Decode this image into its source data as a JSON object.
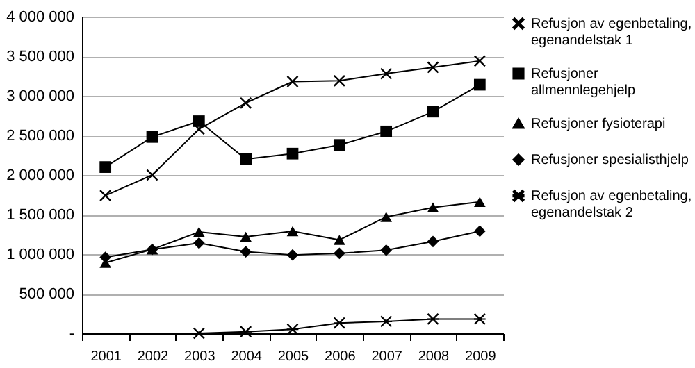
{
  "chart_data": {
    "type": "line",
    "categories": [
      "2001",
      "2002",
      "2003",
      "2004",
      "2005",
      "2006",
      "2007",
      "2008",
      "2009"
    ],
    "ylim": [
      0,
      4000000
    ],
    "yticks": [
      {
        "value": 0,
        "label": "-"
      },
      {
        "value": 500000,
        "label": "500 000"
      },
      {
        "value": 1000000,
        "label": "1 000 000"
      },
      {
        "value": 1500000,
        "label": "1 500 000"
      },
      {
        "value": 2000000,
        "label": "2 000 000"
      },
      {
        "value": 2500000,
        "label": "2 500 000"
      },
      {
        "value": 3000000,
        "label": "3 000 000"
      },
      {
        "value": 3500000,
        "label": "3 500 000"
      },
      {
        "value": 4000000,
        "label": "4 000 000"
      }
    ],
    "grid": "y",
    "legend": "right",
    "series": [
      {
        "name": "Refusjon av egenbetaling, egenandelstak 1",
        "color": "#000000",
        "marker": "cross",
        "values": [
          1740000,
          2000000,
          2580000,
          2910000,
          3180000,
          3190000,
          3280000,
          3360000,
          3440000
        ]
      },
      {
        "name": "Refusjoner allmennlegehjelp",
        "color": "#000000",
        "marker": "square",
        "values": [
          2100000,
          2480000,
          2680000,
          2200000,
          2270000,
          2380000,
          2550000,
          2800000,
          3140000
        ]
      },
      {
        "name": "Refusjoner fysioterapi",
        "color": "#000000",
        "marker": "triangle",
        "values": [
          890000,
          1060000,
          1280000,
          1220000,
          1290000,
          1180000,
          1470000,
          1590000,
          1660000
        ]
      },
      {
        "name": "Refusjoner spesialisthjelp",
        "color": "#000000",
        "marker": "diamond",
        "values": [
          960000,
          1060000,
          1140000,
          1030000,
          990000,
          1010000,
          1050000,
          1160000,
          1290000
        ]
      },
      {
        "name": "Refusjon av egenbetaling, egenandelstak 2",
        "color": "#000000",
        "marker": "star",
        "values": [
          null,
          null,
          0,
          20000,
          50000,
          130000,
          150000,
          180000,
          180000
        ]
      }
    ]
  }
}
